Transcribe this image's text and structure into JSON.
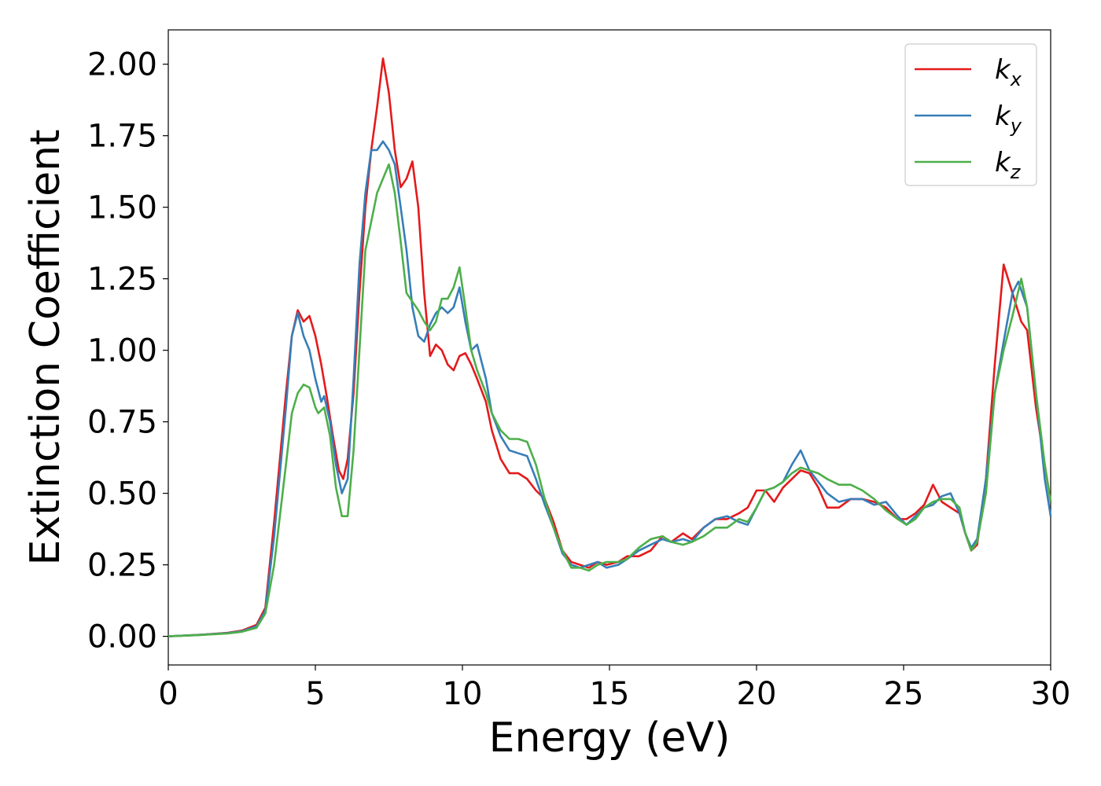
{
  "chart_data": {
    "type": "line",
    "title": "",
    "xlabel": "Energy (eV)",
    "ylabel": "Extinction Coefficient",
    "xlim": [
      0,
      30
    ],
    "ylim": [
      -0.1,
      2.12
    ],
    "xticks": [
      0,
      5,
      10,
      15,
      20,
      25,
      30
    ],
    "xtick_labels": [
      "0",
      "5",
      "10",
      "15",
      "20",
      "25",
      "30"
    ],
    "yticks": [
      0.0,
      0.25,
      0.5,
      0.75,
      1.0,
      1.25,
      1.5,
      1.75,
      2.0
    ],
    "ytick_labels": [
      "0.00",
      "0.25",
      "0.50",
      "0.75",
      "1.00",
      "1.25",
      "1.50",
      "1.75",
      "2.00"
    ],
    "grid": false,
    "legend_position": "top-right",
    "series": [
      {
        "name": "k_x",
        "label_base": "k",
        "label_sub": "x",
        "color": "#e41a1c",
        "points": [
          [
            0,
            0
          ],
          [
            1,
            0.005
          ],
          [
            2,
            0.012
          ],
          [
            2.5,
            0.02
          ],
          [
            3,
            0.04
          ],
          [
            3.3,
            0.1
          ],
          [
            3.6,
            0.4
          ],
          [
            4,
            0.85
          ],
          [
            4.2,
            1.05
          ],
          [
            4.4,
            1.14
          ],
          [
            4.6,
            1.1
          ],
          [
            4.8,
            1.12
          ],
          [
            5,
            1.05
          ],
          [
            5.2,
            0.95
          ],
          [
            5.4,
            0.83
          ],
          [
            5.6,
            0.7
          ],
          [
            5.8,
            0.58
          ],
          [
            5.95,
            0.55
          ],
          [
            6.1,
            0.62
          ],
          [
            6.3,
            0.85
          ],
          [
            6.5,
            1.2
          ],
          [
            6.7,
            1.5
          ],
          [
            6.9,
            1.7
          ],
          [
            7.1,
            1.85
          ],
          [
            7.3,
            2.02
          ],
          [
            7.5,
            1.9
          ],
          [
            7.7,
            1.7
          ],
          [
            7.9,
            1.57
          ],
          [
            8.1,
            1.6
          ],
          [
            8.3,
            1.66
          ],
          [
            8.5,
            1.5
          ],
          [
            8.7,
            1.2
          ],
          [
            8.9,
            0.98
          ],
          [
            9.1,
            1.02
          ],
          [
            9.3,
            1.0
          ],
          [
            9.5,
            0.95
          ],
          [
            9.7,
            0.93
          ],
          [
            9.9,
            0.98
          ],
          [
            10.1,
            0.99
          ],
          [
            10.3,
            0.95
          ],
          [
            10.5,
            0.9
          ],
          [
            10.8,
            0.82
          ],
          [
            11,
            0.72
          ],
          [
            11.3,
            0.62
          ],
          [
            11.6,
            0.57
          ],
          [
            11.9,
            0.57
          ],
          [
            12.2,
            0.55
          ],
          [
            12.5,
            0.51
          ],
          [
            12.8,
            0.48
          ],
          [
            13.1,
            0.4
          ],
          [
            13.4,
            0.3
          ],
          [
            13.7,
            0.26
          ],
          [
            14,
            0.25
          ],
          [
            14.3,
            0.24
          ],
          [
            14.6,
            0.26
          ],
          [
            14.9,
            0.25
          ],
          [
            15.3,
            0.26
          ],
          [
            15.6,
            0.28
          ],
          [
            16,
            0.28
          ],
          [
            16.4,
            0.3
          ],
          [
            16.8,
            0.35
          ],
          [
            17.1,
            0.33
          ],
          [
            17.5,
            0.36
          ],
          [
            17.8,
            0.34
          ],
          [
            18.2,
            0.38
          ],
          [
            18.6,
            0.41
          ],
          [
            19,
            0.41
          ],
          [
            19.4,
            0.43
          ],
          [
            19.7,
            0.45
          ],
          [
            20,
            0.51
          ],
          [
            20.3,
            0.51
          ],
          [
            20.6,
            0.47
          ],
          [
            20.9,
            0.52
          ],
          [
            21.2,
            0.55
          ],
          [
            21.5,
            0.58
          ],
          [
            21.8,
            0.57
          ],
          [
            22.1,
            0.52
          ],
          [
            22.4,
            0.45
          ],
          [
            22.8,
            0.45
          ],
          [
            23.2,
            0.48
          ],
          [
            23.6,
            0.48
          ],
          [
            24,
            0.47
          ],
          [
            24.4,
            0.45
          ],
          [
            24.8,
            0.41
          ],
          [
            25.1,
            0.41
          ],
          [
            25.4,
            0.43
          ],
          [
            25.7,
            0.46
          ],
          [
            26,
            0.53
          ],
          [
            26.3,
            0.47
          ],
          [
            26.6,
            0.45
          ],
          [
            26.9,
            0.43
          ],
          [
            27.1,
            0.36
          ],
          [
            27.3,
            0.3
          ],
          [
            27.5,
            0.32
          ],
          [
            27.8,
            0.55
          ],
          [
            28.1,
            0.95
          ],
          [
            28.4,
            1.3
          ],
          [
            28.7,
            1.2
          ],
          [
            29,
            1.1
          ],
          [
            29.2,
            1.07
          ],
          [
            29.5,
            0.8
          ],
          [
            29.8,
            0.6
          ],
          [
            30,
            0.47
          ]
        ]
      },
      {
        "name": "k_y",
        "label_base": "k",
        "label_sub": "y",
        "color": "#377eb8",
        "points": [
          [
            0,
            0
          ],
          [
            1,
            0.005
          ],
          [
            2,
            0.011
          ],
          [
            2.5,
            0.018
          ],
          [
            3,
            0.035
          ],
          [
            3.3,
            0.09
          ],
          [
            3.6,
            0.35
          ],
          [
            4,
            0.8
          ],
          [
            4.2,
            1.05
          ],
          [
            4.4,
            1.13
          ],
          [
            4.6,
            1.05
          ],
          [
            4.8,
            1.0
          ],
          [
            5,
            0.9
          ],
          [
            5.2,
            0.82
          ],
          [
            5.3,
            0.84
          ],
          [
            5.5,
            0.75
          ],
          [
            5.7,
            0.6
          ],
          [
            5.9,
            0.5
          ],
          [
            6.1,
            0.55
          ],
          [
            6.3,
            0.9
          ],
          [
            6.5,
            1.3
          ],
          [
            6.7,
            1.55
          ],
          [
            6.9,
            1.7
          ],
          [
            7.1,
            1.7
          ],
          [
            7.3,
            1.73
          ],
          [
            7.5,
            1.7
          ],
          [
            7.7,
            1.65
          ],
          [
            7.9,
            1.5
          ],
          [
            8.1,
            1.35
          ],
          [
            8.3,
            1.15
          ],
          [
            8.5,
            1.05
          ],
          [
            8.7,
            1.03
          ],
          [
            8.9,
            1.09
          ],
          [
            9.1,
            1.13
          ],
          [
            9.3,
            1.15
          ],
          [
            9.5,
            1.13
          ],
          [
            9.7,
            1.15
          ],
          [
            9.9,
            1.22
          ],
          [
            10.1,
            1.1
          ],
          [
            10.3,
            1.0
          ],
          [
            10.5,
            1.02
          ],
          [
            10.8,
            0.9
          ],
          [
            11,
            0.78
          ],
          [
            11.3,
            0.7
          ],
          [
            11.6,
            0.65
          ],
          [
            11.9,
            0.64
          ],
          [
            12.2,
            0.63
          ],
          [
            12.5,
            0.55
          ],
          [
            12.8,
            0.46
          ],
          [
            13.1,
            0.38
          ],
          [
            13.4,
            0.29
          ],
          [
            13.7,
            0.25
          ],
          [
            14,
            0.24
          ],
          [
            14.3,
            0.25
          ],
          [
            14.6,
            0.26
          ],
          [
            14.9,
            0.24
          ],
          [
            15.3,
            0.25
          ],
          [
            15.6,
            0.27
          ],
          [
            16,
            0.3
          ],
          [
            16.4,
            0.32
          ],
          [
            16.8,
            0.34
          ],
          [
            17.1,
            0.33
          ],
          [
            17.5,
            0.34
          ],
          [
            17.8,
            0.33
          ],
          [
            18.2,
            0.38
          ],
          [
            18.6,
            0.41
          ],
          [
            19,
            0.42
          ],
          [
            19.4,
            0.4
          ],
          [
            19.7,
            0.39
          ],
          [
            20,
            0.45
          ],
          [
            20.3,
            0.51
          ],
          [
            20.6,
            0.52
          ],
          [
            20.9,
            0.54
          ],
          [
            21.2,
            0.6
          ],
          [
            21.5,
            0.65
          ],
          [
            21.8,
            0.58
          ],
          [
            22.1,
            0.54
          ],
          [
            22.4,
            0.5
          ],
          [
            22.8,
            0.47
          ],
          [
            23.2,
            0.48
          ],
          [
            23.6,
            0.48
          ],
          [
            24,
            0.46
          ],
          [
            24.4,
            0.47
          ],
          [
            24.8,
            0.42
          ],
          [
            25.1,
            0.39
          ],
          [
            25.4,
            0.42
          ],
          [
            25.7,
            0.45
          ],
          [
            26,
            0.46
          ],
          [
            26.3,
            0.49
          ],
          [
            26.6,
            0.5
          ],
          [
            26.9,
            0.43
          ],
          [
            27.1,
            0.36
          ],
          [
            27.3,
            0.31
          ],
          [
            27.5,
            0.34
          ],
          [
            27.8,
            0.55
          ],
          [
            28.1,
            0.85
          ],
          [
            28.4,
            1.03
          ],
          [
            28.7,
            1.2
          ],
          [
            28.9,
            1.24
          ],
          [
            29.2,
            1.15
          ],
          [
            29.5,
            0.85
          ],
          [
            29.8,
            0.55
          ],
          [
            30,
            0.42
          ]
        ]
      },
      {
        "name": "k_z",
        "label_base": "k",
        "label_sub": "z",
        "color": "#4daf4a",
        "points": [
          [
            0,
            0
          ],
          [
            1,
            0.004
          ],
          [
            2,
            0.01
          ],
          [
            2.5,
            0.016
          ],
          [
            3,
            0.03
          ],
          [
            3.3,
            0.08
          ],
          [
            3.6,
            0.25
          ],
          [
            4,
            0.6
          ],
          [
            4.2,
            0.78
          ],
          [
            4.4,
            0.85
          ],
          [
            4.6,
            0.88
          ],
          [
            4.8,
            0.87
          ],
          [
            5,
            0.8
          ],
          [
            5.1,
            0.78
          ],
          [
            5.3,
            0.8
          ],
          [
            5.5,
            0.7
          ],
          [
            5.7,
            0.52
          ],
          [
            5.9,
            0.42
          ],
          [
            6.1,
            0.42
          ],
          [
            6.3,
            0.65
          ],
          [
            6.5,
            1.0
          ],
          [
            6.7,
            1.35
          ],
          [
            6.9,
            1.45
          ],
          [
            7.1,
            1.55
          ],
          [
            7.3,
            1.6
          ],
          [
            7.5,
            1.65
          ],
          [
            7.7,
            1.55
          ],
          [
            7.9,
            1.38
          ],
          [
            8.1,
            1.2
          ],
          [
            8.3,
            1.17
          ],
          [
            8.5,
            1.14
          ],
          [
            8.7,
            1.1
          ],
          [
            8.9,
            1.07
          ],
          [
            9.1,
            1.1
          ],
          [
            9.3,
            1.18
          ],
          [
            9.5,
            1.18
          ],
          [
            9.7,
            1.22
          ],
          [
            9.9,
            1.29
          ],
          [
            10.1,
            1.15
          ],
          [
            10.3,
            1.0
          ],
          [
            10.5,
            0.93
          ],
          [
            10.8,
            0.85
          ],
          [
            11,
            0.78
          ],
          [
            11.3,
            0.72
          ],
          [
            11.6,
            0.69
          ],
          [
            11.9,
            0.69
          ],
          [
            12.2,
            0.68
          ],
          [
            12.5,
            0.6
          ],
          [
            12.8,
            0.48
          ],
          [
            13.1,
            0.38
          ],
          [
            13.4,
            0.3
          ],
          [
            13.7,
            0.24
          ],
          [
            14,
            0.24
          ],
          [
            14.3,
            0.23
          ],
          [
            14.6,
            0.25
          ],
          [
            14.9,
            0.26
          ],
          [
            15.3,
            0.26
          ],
          [
            15.6,
            0.27
          ],
          [
            16,
            0.31
          ],
          [
            16.4,
            0.34
          ],
          [
            16.8,
            0.35
          ],
          [
            17.1,
            0.33
          ],
          [
            17.5,
            0.32
          ],
          [
            17.8,
            0.33
          ],
          [
            18.2,
            0.35
          ],
          [
            18.6,
            0.38
          ],
          [
            19,
            0.38
          ],
          [
            19.4,
            0.41
          ],
          [
            19.7,
            0.4
          ],
          [
            20,
            0.45
          ],
          [
            20.3,
            0.51
          ],
          [
            20.6,
            0.52
          ],
          [
            20.9,
            0.54
          ],
          [
            21.2,
            0.57
          ],
          [
            21.5,
            0.59
          ],
          [
            21.8,
            0.58
          ],
          [
            22.1,
            0.57
          ],
          [
            22.4,
            0.55
          ],
          [
            22.8,
            0.53
          ],
          [
            23.2,
            0.53
          ],
          [
            23.6,
            0.51
          ],
          [
            24,
            0.48
          ],
          [
            24.4,
            0.44
          ],
          [
            24.8,
            0.41
          ],
          [
            25.1,
            0.39
          ],
          [
            25.4,
            0.41
          ],
          [
            25.7,
            0.45
          ],
          [
            26,
            0.47
          ],
          [
            26.3,
            0.48
          ],
          [
            26.6,
            0.48
          ],
          [
            26.9,
            0.45
          ],
          [
            27.1,
            0.36
          ],
          [
            27.3,
            0.3
          ],
          [
            27.5,
            0.33
          ],
          [
            27.8,
            0.5
          ],
          [
            28.1,
            0.85
          ],
          [
            28.4,
            1.0
          ],
          [
            28.7,
            1.12
          ],
          [
            29,
            1.25
          ],
          [
            29.2,
            1.15
          ],
          [
            29.5,
            0.85
          ],
          [
            29.8,
            0.6
          ],
          [
            30,
            0.47
          ]
        ]
      }
    ]
  }
}
